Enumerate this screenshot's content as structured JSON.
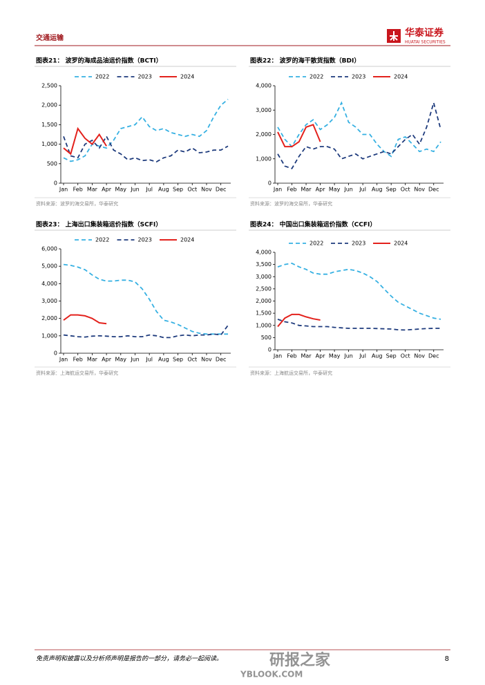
{
  "header": {
    "section": "交通运输",
    "logo_cn": "华泰证券",
    "logo_en": "HUATAI SECURITIES"
  },
  "chart_data": [
    {
      "type": "line",
      "title": "图表21：  波罗的海成品油运价指数（BCTI）",
      "source": "资料来源：波罗的海交易所，华泰研究",
      "categories": [
        "Jan",
        null,
        "Feb",
        null,
        "Mar",
        null,
        "Apr",
        null,
        "May",
        null,
        "Jun",
        null,
        "Jul",
        null,
        "Aug",
        null,
        "Sep",
        null,
        "Oct",
        null,
        "Nov",
        null,
        "Dec",
        null
      ],
      "ylim": [
        0,
        2500
      ],
      "yticks": [
        0,
        500,
        {
          "value": 1000,
          "label": "1,000"
        },
        {
          "value": 1500,
          "label": "1,500"
        },
        {
          "value": 2000,
          "label": "2,000"
        },
        {
          "value": 2500,
          "label": "2,500"
        }
      ],
      "grid": false,
      "legend": "top",
      "series": [
        {
          "name": "2022",
          "color": "#35b0e2",
          "values": [
            650,
            560,
            600,
            700,
            1000,
            950,
            900,
            1100,
            1400,
            1450,
            1500,
            1700,
            1450,
            1350,
            1400,
            1300,
            1250,
            1200,
            1250,
            1200,
            1350,
            1700,
            2000,
            2150
          ]
        },
        {
          "name": "2023",
          "color": "#1d3a7c",
          "values": [
            1200,
            700,
            650,
            1000,
            1100,
            900,
            1200,
            850,
            750,
            600,
            650,
            580,
            600,
            550,
            650,
            700,
            850,
            800,
            900,
            780,
            800,
            850,
            850,
            950
          ]
        },
        {
          "name": "2024",
          "color": "#e3211c",
          "values": [
            900,
            750,
            1400,
            1150,
            1000,
            1250,
            950,
            null,
            null,
            null,
            null,
            null,
            null,
            null,
            null,
            null,
            null,
            null,
            null,
            null,
            null,
            null,
            null,
            null
          ]
        }
      ]
    },
    {
      "type": "line",
      "title": "图表22：  波罗的海干散货指数（BDI）",
      "source": "资料来源：波罗的海交易所，华泰研究",
      "categories": [
        "Jan",
        null,
        "Feb",
        null,
        "Mar",
        null,
        "Apr",
        null,
        "May",
        null,
        "Jun",
        null,
        "Jul",
        null,
        "Aug",
        null,
        "Sep",
        null,
        "Oct",
        null,
        "Nov",
        null,
        "Dec",
        null
      ],
      "ylim": [
        0,
        4000
      ],
      "yticks": [
        0,
        {
          "value": 1000,
          "label": "1,000"
        },
        {
          "value": 2000,
          "label": "2,000"
        },
        {
          "value": 3000,
          "label": "3,000"
        },
        {
          "value": 4000,
          "label": "4,000"
        }
      ],
      "grid": false,
      "legend": "top",
      "series": [
        {
          "name": "2022",
          "color": "#35b0e2",
          "values": [
            2300,
            1800,
            1500,
            2000,
            2400,
            2600,
            2200,
            2400,
            2700,
            3300,
            2500,
            2300,
            2000,
            2000,
            1600,
            1300,
            1100,
            1800,
            1900,
            1600,
            1300,
            1400,
            1300,
            1700
          ]
        },
        {
          "name": "2023",
          "color": "#1d3a7c",
          "values": [
            1200,
            700,
            600,
            1100,
            1500,
            1400,
            1500,
            1500,
            1400,
            1000,
            1100,
            1200,
            1000,
            1100,
            1200,
            1300,
            1200,
            1500,
            1800,
            2000,
            1600,
            2300,
            3300,
            2200
          ]
        },
        {
          "name": "2024",
          "color": "#e3211c",
          "values": [
            2100,
            1500,
            1500,
            1700,
            2300,
            2400,
            1700,
            null,
            null,
            null,
            null,
            null,
            null,
            null,
            null,
            null,
            null,
            null,
            null,
            null,
            null,
            null,
            null,
            null
          ]
        }
      ]
    },
    {
      "type": "line",
      "title": "图表23：  上海出口集装箱运价指数（SCFI）",
      "source": "资料来源：上海航运交易所，华泰研究",
      "categories": [
        "Jan",
        null,
        "Feb",
        null,
        "Mar",
        null,
        "Apr",
        null,
        "May",
        null,
        "Jun",
        null,
        "Jul",
        null,
        "Aug",
        null,
        "Sep",
        null,
        "Oct",
        null,
        "Nov",
        null,
        "Dec",
        null
      ],
      "ylim": [
        0,
        6000
      ],
      "yticks": [
        0,
        {
          "value": 1000,
          "label": "1,000"
        },
        {
          "value": 2000,
          "label": "2,000"
        },
        {
          "value": 3000,
          "label": "3,000"
        },
        {
          "value": 4000,
          "label": "4,000"
        },
        {
          "value": 5000,
          "label": "5,000"
        },
        {
          "value": 6000,
          "label": "6,000"
        }
      ],
      "grid": false,
      "legend": "top",
      "series": [
        {
          "name": "2022",
          "color": "#35b0e2",
          "values": [
            5100,
            5050,
            4950,
            4800,
            4500,
            4250,
            4150,
            4150,
            4200,
            4200,
            4100,
            3700,
            3100,
            2400,
            1900,
            1800,
            1650,
            1450,
            1250,
            1150,
            1100,
            1100,
            1100,
            1100
          ]
        },
        {
          "name": "2023",
          "color": "#1d3a7c",
          "values": [
            1050,
            1000,
            950,
            930,
            980,
            1000,
            980,
            950,
            950,
            1000,
            950,
            950,
            1050,
            1000,
            900,
            900,
            1000,
            1050,
            1000,
            1050,
            1050,
            1100,
            1050,
            1600
          ]
        },
        {
          "name": "2024",
          "color": "#e3211c",
          "values": [
            1900,
            2200,
            2200,
            2150,
            2000,
            1750,
            1700,
            null,
            null,
            null,
            null,
            null,
            null,
            null,
            null,
            null,
            null,
            null,
            null,
            null,
            null,
            null,
            null,
            null
          ]
        }
      ]
    },
    {
      "type": "line",
      "title": "图表24：  中国出口集装箱运价指数（CCFI）",
      "source": "资料来源：上海航运交易所，华泰研究",
      "categories": [
        "Jan",
        null,
        "Feb",
        null,
        "Mar",
        null,
        "Apr",
        null,
        "May",
        null,
        "Jun",
        null,
        "Jul",
        null,
        "Aug",
        null,
        "Sep",
        null,
        "Oct",
        null,
        "Nov",
        null,
        "Dec",
        null
      ],
      "ylim": [
        0,
        4000
      ],
      "yticks": [
        0,
        500,
        {
          "value": 1000,
          "label": "1,000"
        },
        {
          "value": 1500,
          "label": "1,500"
        },
        {
          "value": 2000,
          "label": "2,000"
        },
        {
          "value": 2500,
          "label": "2,500"
        },
        {
          "value": 3000,
          "label": "3,000"
        },
        {
          "value": 3500,
          "label": "3,500"
        },
        {
          "value": 4000,
          "label": "4,000"
        }
      ],
      "grid": false,
      "legend": "top",
      "series": [
        {
          "name": "2022",
          "color": "#35b0e2",
          "values": [
            3400,
            3500,
            3550,
            3400,
            3300,
            3150,
            3100,
            3100,
            3200,
            3250,
            3300,
            3250,
            3150,
            3000,
            2800,
            2500,
            2200,
            1950,
            1800,
            1650,
            1500,
            1400,
            1300,
            1250
          ]
        },
        {
          "name": "2023",
          "color": "#1d3a7c",
          "values": [
            1250,
            1150,
            1100,
            1000,
            980,
            950,
            950,
            950,
            920,
            900,
            880,
            880,
            880,
            880,
            870,
            860,
            850,
            820,
            810,
            830,
            850,
            870,
            880,
            880
          ]
        },
        {
          "name": "2024",
          "color": "#e3211c",
          "values": [
            950,
            1300,
            1450,
            1450,
            1350,
            1270,
            1220,
            null,
            null,
            null,
            null,
            null,
            null,
            null,
            null,
            null,
            null,
            null,
            null,
            null,
            null,
            null,
            null,
            null
          ]
        }
      ]
    }
  ],
  "footer": {
    "disclaimer": "免责声明和披露以及分析师声明是报告的一部分，请务必一起阅读。",
    "page": "8"
  },
  "watermark": {
    "cn": "研报之家",
    "en": "YBLOOK.COM"
  }
}
